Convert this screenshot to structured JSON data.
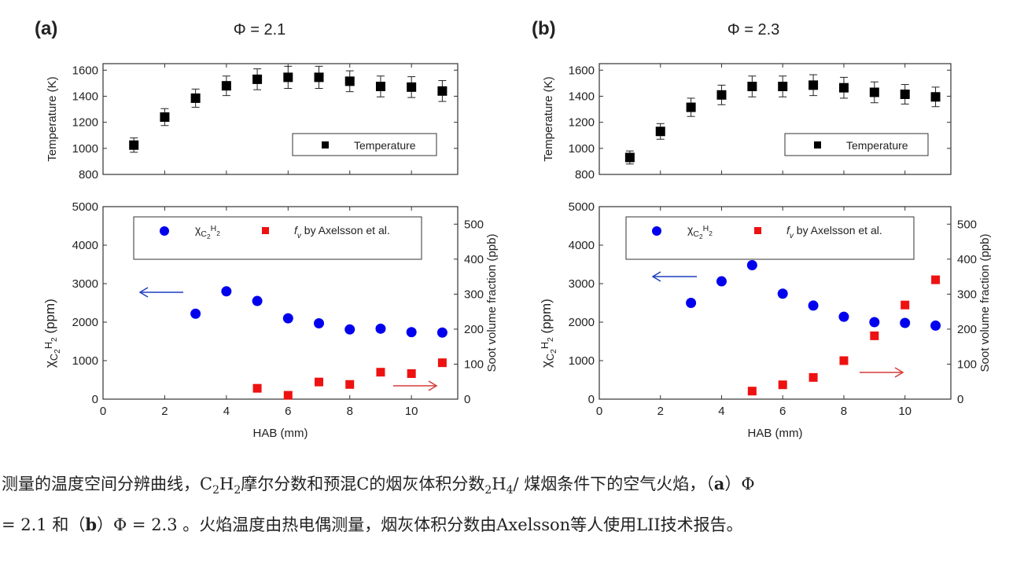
{
  "chart_data": [
    {
      "panel_label": "(a)",
      "title": "Φ = 2.1",
      "subplots": [
        {
          "type": "scatter",
          "ylabel": "Temperature (K)",
          "xlim": [
            0,
            11.5
          ],
          "ylim": [
            800,
            1650
          ],
          "yticks": [
            800,
            1000,
            1200,
            1400,
            1600
          ],
          "xticks": [
            0,
            2,
            4,
            6,
            8,
            10
          ],
          "show_xtick_labels": false,
          "legend": {
            "placement": "lower-right",
            "entries": [
              "Temperature"
            ]
          },
          "series": [
            {
              "name": "Temperature",
              "marker": "square",
              "color": "#000000",
              "x": [
                1,
                2,
                3,
                4,
                5,
                6,
                7,
                8,
                9,
                10,
                11
              ],
              "y": [
                1025,
                1240,
                1385,
                1480,
                1530,
                1545,
                1545,
                1515,
                1475,
                1470,
                1440
              ],
              "error": [
                55,
                65,
                70,
                75,
                80,
                85,
                85,
                80,
                80,
                80,
                80
              ]
            }
          ]
        },
        {
          "type": "scatter",
          "xlabel": "HAB (mm)",
          "ylabel_left": {
            "symbol": "χ",
            "sub": "C2H2",
            "unit": "(ppm)"
          },
          "ylabel_right": "Soot volume fraction (ppb)",
          "xlim": [
            0,
            11.5
          ],
          "ylim_left": [
            0,
            5000
          ],
          "ylim_right": [
            0,
            550
          ],
          "xticks": [
            0,
            2,
            4,
            6,
            8,
            10
          ],
          "yticks_left": [
            0,
            1000,
            2000,
            3000,
            4000,
            5000
          ],
          "yticks_right": [
            0,
            100,
            200,
            300,
            400,
            500
          ],
          "legend": {
            "placement": "top",
            "entries": [
              "χC2H2",
              "fv by Axelsson et al."
            ]
          },
          "series": [
            {
              "name": "χC2H2",
              "axis": "left",
              "marker": "circle",
              "color": "#0000ee",
              "x": [
                3,
                4,
                5,
                6,
                7,
                8,
                9,
                10,
                11
              ],
              "y": [
                2220,
                2800,
                2550,
                2100,
                1970,
                1810,
                1830,
                1740,
                1730
              ]
            },
            {
              "name": "fv by Axelsson et al.",
              "axis": "right",
              "marker": "square",
              "color": "#ee1111",
              "x": [
                5,
                6,
                7,
                8,
                9,
                10,
                11
              ],
              "y": [
                31,
                11,
                49,
                42,
                77,
                73,
                104
              ]
            }
          ]
        }
      ]
    },
    {
      "panel_label": "(b)",
      "title": "Φ = 2.3",
      "subplots": [
        {
          "type": "scatter",
          "ylabel": "Temperature (K)",
          "xlim": [
            0,
            11.5
          ],
          "ylim": [
            800,
            1650
          ],
          "yticks": [
            800,
            1000,
            1200,
            1400,
            1600
          ],
          "xticks": [
            0,
            2,
            4,
            6,
            8,
            10
          ],
          "show_xtick_labels": false,
          "legend": {
            "placement": "lower-right",
            "entries": [
              "Temperature"
            ]
          },
          "series": [
            {
              "name": "Temperature",
              "marker": "square",
              "color": "#000000",
              "x": [
                1,
                2,
                3,
                4,
                5,
                6,
                7,
                8,
                9,
                10,
                11
              ],
              "y": [
                930,
                1130,
                1315,
                1410,
                1475,
                1475,
                1485,
                1465,
                1430,
                1415,
                1395
              ],
              "error": [
                50,
                60,
                70,
                75,
                80,
                80,
                80,
                80,
                80,
                75,
                75
              ]
            }
          ]
        },
        {
          "type": "scatter",
          "xlabel": "HAB (mm)",
          "ylabel_left": {
            "symbol": "χ",
            "sub": "C2H2",
            "unit": "(ppm)"
          },
          "ylabel_right": "Soot volume fraction (ppb)",
          "xlim": [
            0,
            11.5
          ],
          "ylim_left": [
            0,
            5000
          ],
          "ylim_right": [
            0,
            550
          ],
          "xticks": [
            0,
            2,
            4,
            6,
            8,
            10
          ],
          "yticks_left": [
            0,
            1000,
            2000,
            3000,
            4000,
            5000
          ],
          "yticks_right": [
            0,
            100,
            200,
            300,
            400,
            500
          ],
          "legend": {
            "placement": "top",
            "entries": [
              "χC2H2",
              "fv by Axelsson et al."
            ]
          },
          "series": [
            {
              "name": "χC2H2",
              "axis": "left",
              "marker": "circle",
              "color": "#0000ee",
              "x": [
                3,
                4,
                5,
                6,
                7,
                8,
                9,
                10,
                11
              ],
              "y": [
                2500,
                3060,
                3480,
                2740,
                2430,
                2140,
                2000,
                1980,
                1910
              ]
            },
            {
              "name": "fv by Axelsson et al.",
              "axis": "right",
              "marker": "square",
              "color": "#ee1111",
              "x": [
                5,
                6,
                7,
                8,
                9,
                10,
                11
              ],
              "y": [
                23,
                41,
                62,
                110,
                181,
                269,
                341
              ]
            }
          ]
        }
      ]
    }
  ],
  "caption": {
    "line1": [
      {
        "t": "测量的温度空间分辨曲线，C"
      },
      {
        "t": "2",
        "sub": true
      },
      {
        "t": "H"
      },
      {
        "t": "2",
        "sub": true
      },
      {
        "t": "摩尔分数和预混C的烟灰体积分数"
      },
      {
        "t": "2",
        "sub": true
      },
      {
        "t": "H"
      },
      {
        "t": "4",
        "sub": true
      },
      {
        "t": "/ 煤烟条件下的空气火焰，（"
      },
      {
        "t": "a",
        "bold": true
      },
      {
        "t": "）Φ"
      }
    ],
    "line2": [
      {
        "t": "= 2.1 和（"
      },
      {
        "t": "b",
        "bold": true
      },
      {
        "t": "）Φ = 2.3 。火焰温度由热电偶测量，烟灰体积分数由Axelsson等人使用LII技术报告。"
      }
    ]
  },
  "colors": {
    "c2h2": "#0000ee",
    "fv": "#ee1111",
    "temperature": "#000000",
    "axis": "#333333"
  }
}
